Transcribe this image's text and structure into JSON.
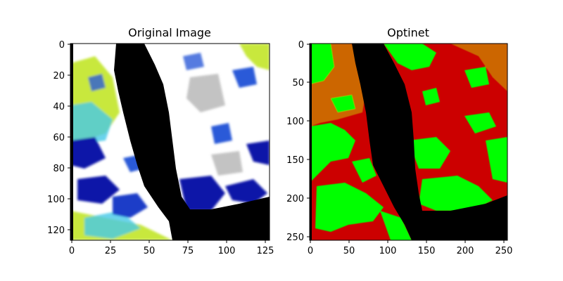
{
  "panels": [
    {
      "title": "Original Image",
      "x_ticks": [
        "0",
        "25",
        "50",
        "75",
        "100",
        "125"
      ],
      "y_ticks": [
        "0",
        "20",
        "40",
        "60",
        "80",
        "100",
        "120"
      ]
    },
    {
      "title": "Optinet",
      "x_ticks": [
        "0",
        "50",
        "100",
        "150",
        "200",
        "250"
      ],
      "y_ticks": [
        "0",
        "50",
        "100",
        "150",
        "200",
        "250"
      ]
    }
  ],
  "colors": {
    "sea": "#000000",
    "cloud": "#ffffff",
    "haze": "#a9a9a9",
    "deep_blue": "#0a12a8",
    "mid_blue": "#2a5ad8",
    "cyan": "#46c8e8",
    "yellow_green": "#c8e83c",
    "class_red": "#cc0000",
    "class_green": "#00ff00",
    "class_orange": "#cc6600"
  }
}
